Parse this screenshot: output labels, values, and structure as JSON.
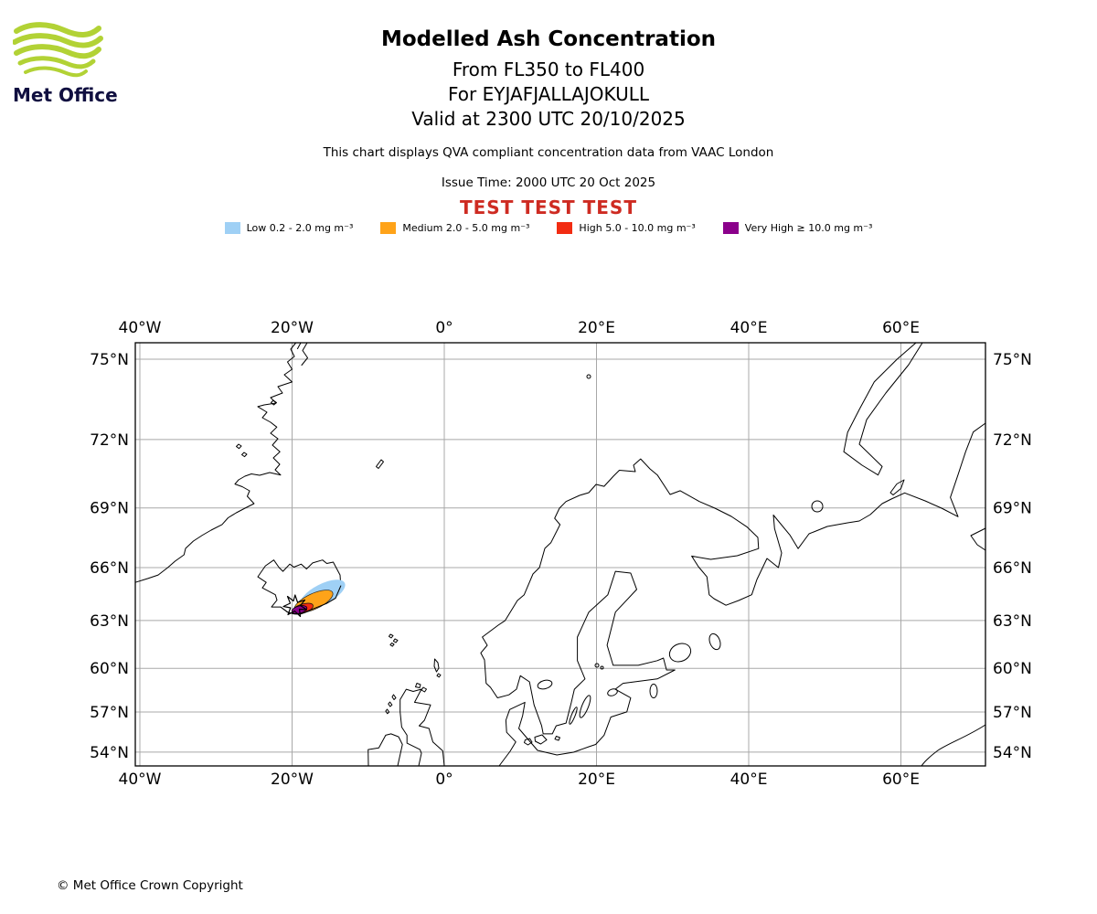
{
  "logo": {
    "text": "Met Office",
    "swoosh_color": "#B2D235",
    "text_color": "#100F40"
  },
  "header": {
    "title": "Modelled Ash Concentration",
    "flight_levels": "From FL350 to FL400",
    "volcano": "For EYJAFJALLAJOKULL",
    "valid_time": "Valid at 2300 UTC 20/10/2025",
    "compliance_note": "This chart displays QVA compliant concentration data from VAAC London",
    "issue_time": "Issue Time: 2000 UTC 20 Oct 2025",
    "test_banner": "TEST TEST TEST",
    "test_banner_color": "#CE2B22"
  },
  "legend": {
    "items": [
      {
        "label": "Low 0.2 - 2.0 mg m⁻³",
        "color": "#9FD0F5"
      },
      {
        "label": "Medium 2.0 - 5.0 mg m⁻³",
        "color": "#FFA319"
      },
      {
        "label": "High 5.0 - 10.0 mg m⁻³",
        "color": "#F22C12"
      },
      {
        "label": "Very High ≥ 10.0 mg m⁻³",
        "color": "#8B008B"
      }
    ]
  },
  "map": {
    "x_tick_labels": [
      "40°W",
      "20°W",
      "0°",
      "20°E",
      "40°E",
      "60°E"
    ],
    "y_tick_labels": [
      "75°N",
      "72°N",
      "69°N",
      "66°N",
      "63°N",
      "60°N",
      "57°N",
      "54°N"
    ],
    "projection": "mercator"
  },
  "chart_data": {
    "type": "map-contour",
    "title": "Modelled Ash Concentration",
    "volcano": "EYJAFJALLAJOKULL",
    "flight_level_range": [
      "FL350",
      "FL400"
    ],
    "valid_time": "2300 UTC 20/10/2025",
    "issue_time": "2000 UTC 20 Oct 2025",
    "source": "VAAC London",
    "lon_range_deg": [
      -40.6,
      71.1
    ],
    "lat_range_deg": [
      52.9,
      75.6
    ],
    "x_ticks_deg": [
      -40,
      -20,
      0,
      20,
      40,
      60
    ],
    "y_ticks_deg": [
      75,
      72,
      69,
      66,
      63,
      60,
      57,
      54
    ],
    "concentration_bands": [
      {
        "level": "Low",
        "range_mg_m3": "0.2 - 2.0",
        "color": "#9FD0F5"
      },
      {
        "level": "Medium",
        "range_mg_m3": "2.0 - 5.0",
        "color": "#FFA319"
      },
      {
        "level": "High",
        "range_mg_m3": "5.0 - 10.0",
        "color": "#F22C12"
      },
      {
        "level": "Very High",
        "range_mg_m3": "≥ 10.0",
        "color": "#8B008B"
      }
    ],
    "plume": {
      "location": "over and east of southern Iceland",
      "approx_center_lonlat": [
        -17.0,
        64.2
      ],
      "extent_lonlat": [
        [
          -19.8,
          63.5
        ],
        [
          -13.0,
          65.2
        ]
      ],
      "levels_present": [
        "Low",
        "Medium",
        "High",
        "Very High"
      ]
    }
  },
  "footer": {
    "copyright": "© Met Office Crown Copyright"
  }
}
